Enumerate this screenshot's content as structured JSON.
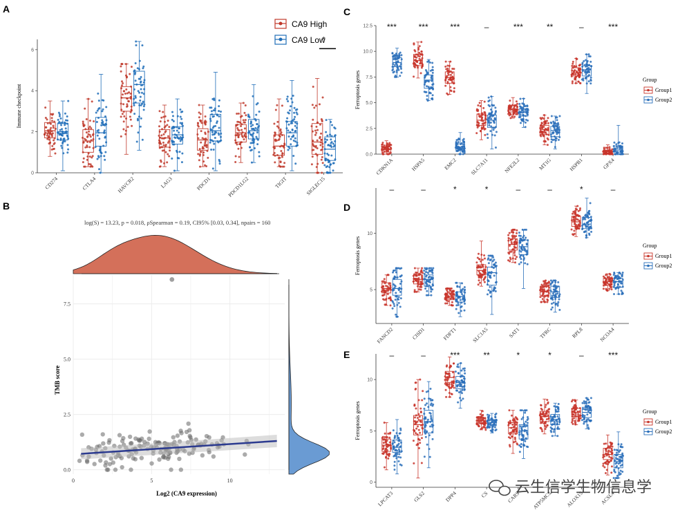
{
  "colors": {
    "high": "#c0392b",
    "low": "#1f6db8",
    "group1": "#c8352b",
    "group2": "#2a6fba",
    "density_top": "#d4705a",
    "density_right": "#6a9bd3",
    "reg_line": "#2b3a8f",
    "grid": "#ececec"
  },
  "panels": {
    "a": "A",
    "b": "B",
    "c": "C",
    "d": "D",
    "e": "E"
  },
  "watermark": {
    "text": "云生信学生物信息学",
    "icon": "wechat-icon"
  },
  "chart_data": [
    {
      "id": "A",
      "type": "box",
      "ylabel": "Immune checkpoint",
      "ylim": [
        0,
        6.5
      ],
      "yticks": [
        0,
        2,
        4,
        6
      ],
      "categories": [
        "CD274",
        "CTLA4",
        "HAVCR2",
        "LAG3",
        "PDCD1",
        "PDCD1LG2",
        "TIGIT",
        "SIGLEC15"
      ],
      "legend": [
        "CA9 High",
        "CA9 Low"
      ],
      "series": [
        {
          "name": "CA9 High",
          "stats": [
            [
              0.8,
              1.7,
              2.05,
              2.45,
              3.5
            ],
            [
              0.3,
              1.0,
              1.55,
              2.1,
              3.6
            ],
            [
              0.9,
              3.0,
              3.65,
              4.2,
              5.3
            ],
            [
              0.3,
              1.25,
              1.7,
              2.1,
              3.3
            ],
            [
              0.3,
              1.1,
              1.6,
              2.15,
              3.3
            ],
            [
              0.5,
              1.5,
              1.95,
              2.35,
              3.4
            ],
            [
              0.3,
              0.85,
              1.3,
              1.85,
              3.6
            ],
            [
              0.0,
              0.9,
              1.5,
              2.4,
              4.6
            ]
          ]
        },
        {
          "name": "CA9 Low",
          "stats": [
            [
              0.1,
              1.6,
              2.0,
              2.4,
              3.5
            ],
            [
              0.0,
              1.3,
              1.95,
              2.7,
              4.8
            ],
            [
              1.1,
              3.4,
              4.3,
              4.95,
              6.4
            ],
            [
              0.1,
              1.4,
              1.85,
              2.25,
              3.6
            ],
            [
              0.1,
              1.55,
              2.05,
              2.85,
              4.9
            ],
            [
              0.5,
              1.65,
              2.05,
              2.6,
              4.3
            ],
            [
              0.1,
              1.3,
              1.95,
              2.5,
              4.5
            ],
            [
              0.0,
              0.6,
              1.15,
              1.75,
              2.6
            ]
          ]
        }
      ],
      "significance": [
        "",
        "",
        "",
        "",
        "",
        "",
        "",
        "*"
      ]
    },
    {
      "id": "B",
      "type": "scatter",
      "xlabel": "Log2 (CA9 expression)",
      "ylabel": "TMB score",
      "stats_text": "log(S) = 13.23, p = 0.018, ρSpearman = 0.19, CI95% [0.03, 0.34], npairs = 160",
      "xlim": [
        0,
        13.5
      ],
      "ylim": [
        -0.2,
        8.8
      ],
      "xticks": [
        0,
        5,
        10
      ],
      "yticks": [
        0.0,
        2.5,
        5.0,
        7.5
      ],
      "regression": {
        "x0": 0.5,
        "y0": 0.72,
        "x1": 13,
        "y1": 1.3
      },
      "outlier": {
        "x": 6.3,
        "y": 8.6
      }
    },
    {
      "id": "C",
      "type": "box",
      "ylabel": "Ferroptosis genes",
      "ylim": [
        0,
        12.5
      ],
      "yticks": [
        0.0,
        2.5,
        5.0,
        7.5,
        10.0,
        12.5
      ],
      "categories": [
        "CDKN1A",
        "HSPA5",
        "EMC2",
        "SLC7A11",
        "NFE2L2",
        "MT1G",
        "HSPB1",
        "GPX4"
      ],
      "legend_title": "Group",
      "legend": [
        "Group1",
        "Group2"
      ],
      "series": [
        {
          "name": "Group1",
          "stats": [
            [
              0.0,
              0.2,
              0.45,
              0.7,
              1.3
            ],
            [
              7.4,
              8.6,
              9.1,
              9.7,
              10.9
            ],
            [
              5.8,
              6.9,
              7.45,
              8.0,
              9.0
            ],
            [
              1.4,
              2.8,
              3.3,
              3.9,
              5.2
            ],
            [
              3.5,
              4.1,
              4.4,
              4.7,
              5.5
            ],
            [
              0.9,
              1.9,
              2.4,
              2.8,
              3.8
            ],
            [
              6.9,
              7.6,
              7.9,
              8.4,
              9.3
            ],
            [
              0.0,
              0.1,
              0.25,
              0.4,
              0.9
            ]
          ]
        },
        {
          "name": "Group2",
          "stats": [
            [
              7.5,
              8.5,
              8.9,
              9.4,
              10.3
            ],
            [
              5.2,
              6.4,
              7.2,
              7.7,
              9.2
            ],
            [
              0.0,
              0.4,
              0.7,
              1.0,
              2.1
            ],
            [
              0.5,
              2.6,
              3.3,
              3.8,
              5.6
            ],
            [
              2.6,
              3.7,
              4.1,
              4.4,
              5.4
            ],
            [
              0.5,
              1.7,
              2.3,
              2.7,
              3.7
            ],
            [
              5.9,
              7.6,
              8.2,
              8.6,
              9.7
            ],
            [
              0.0,
              0.2,
              0.4,
              0.8,
              2.8
            ]
          ]
        }
      ],
      "significance": [
        "***",
        "***",
        "***",
        "–",
        "***",
        "**",
        "–",
        "***"
      ]
    },
    {
      "id": "D",
      "type": "box",
      "ylabel": "Ferroptosis genes",
      "ylim": [
        2,
        14
      ],
      "yticks": [
        5,
        10
      ],
      "categories": [
        "FANCD2",
        "CISD1",
        "FDFT1",
        "SLC1A5",
        "SAT1",
        "TFRC",
        "RPL8",
        "NCOA4"
      ],
      "legend_title": "Group",
      "legend": [
        "Group1",
        "Group2"
      ],
      "series": [
        {
          "name": "Group1",
          "stats": [
            [
              3.6,
              4.7,
              5.1,
              5.6,
              6.3
            ],
            [
              4.8,
              5.5,
              5.9,
              6.3,
              6.9
            ],
            [
              3.6,
              4.1,
              4.4,
              4.7,
              5.1
            ],
            [
              5.3,
              6.3,
              6.7,
              7.2,
              9.3
            ],
            [
              7.4,
              8.5,
              9.0,
              9.5,
              10.3
            ],
            [
              3.9,
              4.5,
              4.8,
              5.3,
              5.8
            ],
            [
              9.7,
              10.6,
              11.0,
              11.5,
              12.4
            ],
            [
              4.9,
              5.4,
              5.7,
              6.0,
              6.4
            ]
          ]
        },
        {
          "name": "Group2",
          "stats": [
            [
              2.6,
              4.5,
              5.1,
              5.9,
              6.9
            ],
            [
              4.5,
              5.3,
              5.9,
              6.3,
              6.9
            ],
            [
              2.6,
              3.9,
              4.4,
              4.8,
              5.6
            ],
            [
              2.8,
              5.4,
              6.5,
              7.0,
              8.0
            ],
            [
              5.1,
              8.1,
              8.8,
              9.4,
              10.3
            ],
            [
              3.0,
              4.3,
              4.8,
              5.3,
              5.8
            ],
            [
              9.6,
              10.4,
              10.8,
              11.4,
              13.1
            ],
            [
              4.6,
              5.2,
              5.7,
              6.0,
              6.5
            ]
          ]
        }
      ],
      "significance": [
        "–",
        "–",
        "*",
        "*",
        "–",
        "–",
        "*",
        "–"
      ]
    },
    {
      "id": "E",
      "type": "box",
      "ylabel": "Ferroptosis genes",
      "ylim": [
        -0.5,
        12.5
      ],
      "yticks": [
        0,
        5,
        10
      ],
      "categories": [
        "LPCAT3",
        "GLS2",
        "DPP4",
        "CS",
        "CARS",
        "ATP5MC3",
        "ALOX15",
        "ACSL4"
      ],
      "legend_title": "Group",
      "legend": [
        "Group1",
        "Group2"
      ],
      "series": [
        {
          "name": "Group1",
          "stats": [
            [
              1.2,
              3.0,
              3.6,
              4.2,
              5.8
            ],
            [
              0.4,
              4.6,
              5.6,
              6.5,
              10.0
            ],
            [
              8.3,
              9.7,
              10.2,
              10.8,
              12.2
            ],
            [
              5.1,
              5.7,
              6.0,
              6.3,
              7.0
            ],
            [
              2.8,
              4.7,
              5.3,
              5.8,
              7.0
            ],
            [
              4.7,
              5.9,
              6.4,
              6.9,
              8.1
            ],
            [
              5.6,
              6.4,
              6.8,
              7.2,
              8.0
            ],
            [
              0.7,
              2.2,
              2.7,
              3.3,
              4.6
            ]
          ]
        },
        {
          "name": "Group2",
          "stats": [
            [
              0.8,
              2.9,
              3.4,
              4.1,
              6.1
            ],
            [
              1.4,
              4.8,
              5.9,
              7.0,
              9.8
            ],
            [
              7.2,
              9.1,
              9.7,
              10.3,
              11.6
            ],
            [
              4.8,
              5.5,
              5.8,
              6.1,
              6.7
            ],
            [
              2.3,
              4.2,
              5.0,
              5.6,
              7.0
            ],
            [
              4.5,
              5.6,
              6.1,
              6.6,
              7.7
            ],
            [
              5.2,
              6.3,
              6.8,
              7.3,
              8.2
            ],
            [
              0.4,
              1.4,
              2.0,
              2.7,
              4.9
            ]
          ]
        }
      ],
      "significance": [
        "–",
        "–",
        "***",
        "**",
        "*",
        "*",
        "–",
        "***"
      ]
    }
  ]
}
